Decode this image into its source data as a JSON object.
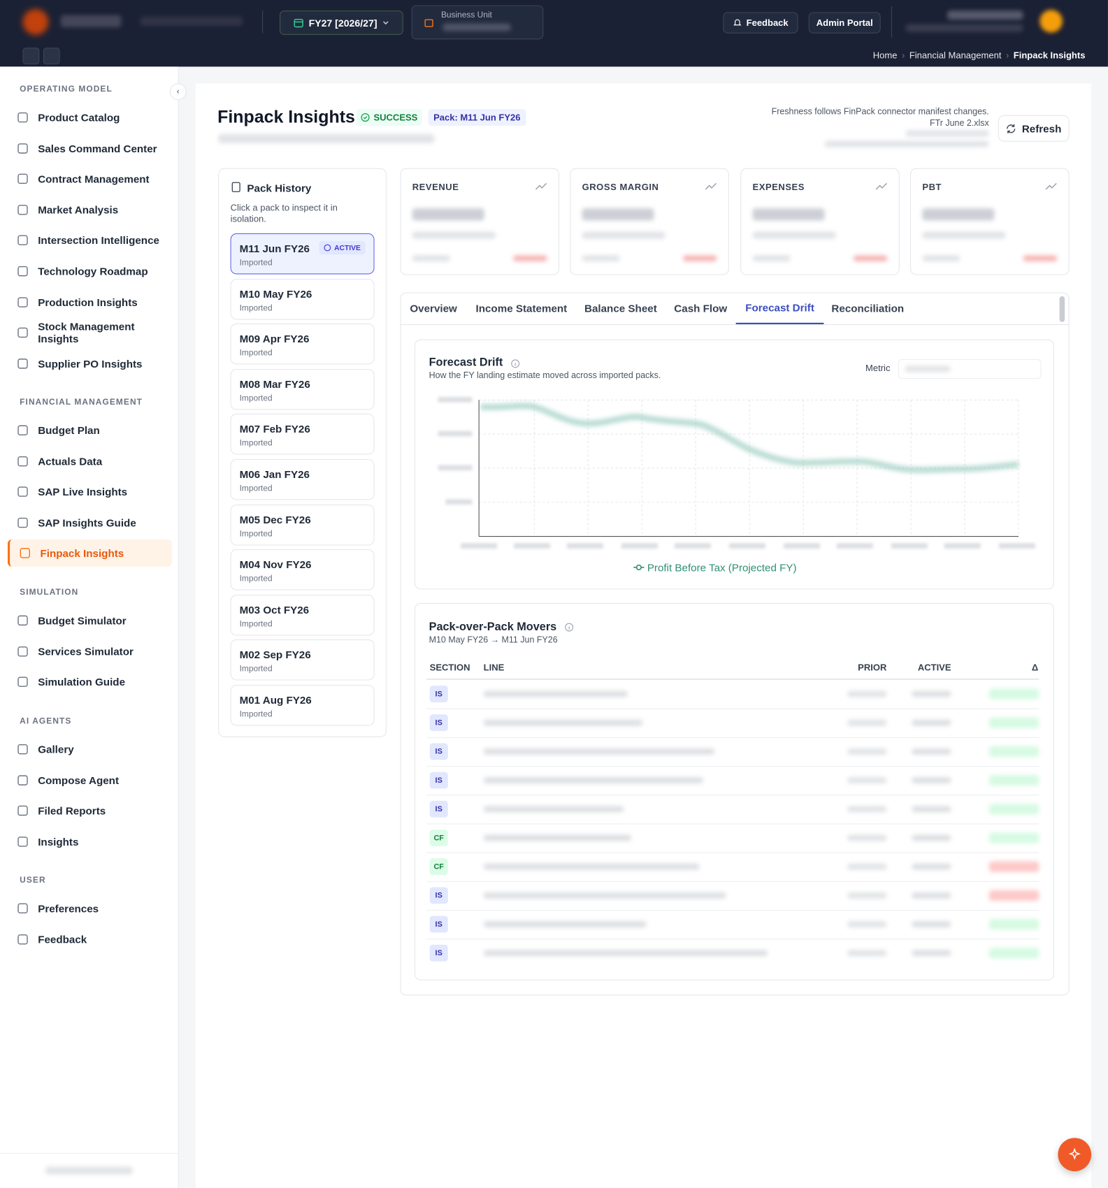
{
  "header": {
    "fiscal_year": "FY27 [2026/27]",
    "business_unit_label": "Business Unit",
    "feedback": "Feedback",
    "admin_portal": "Admin Portal",
    "breadcrumb": [
      "Home",
      "Financial Management",
      "Finpack Insights"
    ]
  },
  "sidebar": [
    {
      "title": "OPERATING MODEL",
      "items": [
        "Product Catalog",
        "Sales Command Center",
        "Contract Management",
        "Market Analysis",
        "Intersection Intelligence",
        "Technology Roadmap",
        "Production Insights",
        "Stock Management Insights",
        "Supplier PO Insights"
      ]
    },
    {
      "title": "FINANCIAL MANAGEMENT",
      "items": [
        "Budget Plan",
        "Actuals Data",
        "SAP Live Insights",
        "SAP Insights Guide",
        "Finpack Insights"
      ]
    },
    {
      "title": "SIMULATION",
      "items": [
        "Budget Simulator",
        "Services Simulator",
        "Simulation Guide"
      ]
    },
    {
      "title": "AI AGENTS",
      "items": [
        "Gallery",
        "Compose Agent",
        "Filed Reports",
        "Insights"
      ]
    },
    {
      "title": "USER",
      "items": [
        "Preferences",
        "Feedback"
      ]
    }
  ],
  "page": {
    "title": "Finpack Insights",
    "status": "SUCCESS",
    "pack": "Pack: M11 Jun FY26",
    "freshness_note": "Freshness follows FinPack connector manifest changes.",
    "file": "FTr June 2.xlsx",
    "refresh": "Refresh"
  },
  "pack_history": {
    "title": "Pack History",
    "description": "Click a pack to inspect it in isolation.",
    "active_badge": "ACTIVE",
    "packs": [
      {
        "name": "M11 Jun FY26",
        "status": "Imported"
      },
      {
        "name": "M10 May FY26",
        "status": "Imported"
      },
      {
        "name": "M09 Apr FY26",
        "status": "Imported"
      },
      {
        "name": "M08 Mar FY26",
        "status": "Imported"
      },
      {
        "name": "M07 Feb FY26",
        "status": "Imported"
      },
      {
        "name": "M06 Jan FY26",
        "status": "Imported"
      },
      {
        "name": "M05 Dec FY26",
        "status": "Imported"
      },
      {
        "name": "M04 Nov FY26",
        "status": "Imported"
      },
      {
        "name": "M03 Oct FY26",
        "status": "Imported"
      },
      {
        "name": "M02 Sep FY26",
        "status": "Imported"
      },
      {
        "name": "M01 Aug FY26",
        "status": "Imported"
      }
    ]
  },
  "kpis": [
    "REVENUE",
    "GROSS MARGIN",
    "EXPENSES",
    "PBT"
  ],
  "tabs": [
    "Overview",
    "Income Statement",
    "Balance Sheet",
    "Cash Flow",
    "Forecast Drift",
    "Reconciliation"
  ],
  "forecast_drift": {
    "title": "Forecast Drift",
    "subtitle": "How the FY landing estimate moved across imported packs.",
    "metric_label": "Metric",
    "legend": "Profit Before Tax (Projected FY)"
  },
  "movers": {
    "title": "Pack-over-Pack Movers",
    "subtitle": "M10 May FY26 → M11 Jun FY26",
    "columns": [
      "SECTION",
      "LINE",
      "PRIOR",
      "ACTIVE",
      "Δ"
    ],
    "sections": [
      "IS",
      "IS",
      "IS",
      "IS",
      "IS",
      "CF",
      "CF",
      "IS",
      "IS",
      "IS"
    ]
  }
}
